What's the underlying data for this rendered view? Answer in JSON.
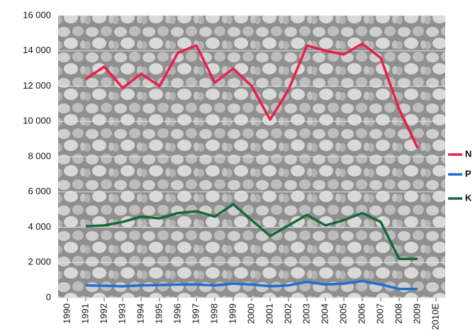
{
  "chart_data": {
    "type": "line",
    "categories": [
      "1990",
      "1991",
      "1992",
      "1993",
      "1994",
      "1995",
      "1996",
      "1997",
      "1998",
      "1999",
      "2000",
      "2001",
      "2002",
      "2003",
      "2004",
      "2005",
      "2006",
      "2007",
      "2008",
      "2009",
      "2010E"
    ],
    "series": [
      {
        "name": "N",
        "color": "#e8204a",
        "values": [
          null,
          12400,
          13100,
          11900,
          12700,
          12000,
          13900,
          14300,
          12200,
          13000,
          12000,
          10100,
          11800,
          14300,
          14000,
          13800,
          14400,
          13600,
          10700,
          8500,
          null
        ]
      },
      {
        "name": "P",
        "color": "#1f6fd1",
        "values": [
          null,
          700,
          680,
          650,
          700,
          720,
          750,
          750,
          700,
          800,
          750,
          650,
          700,
          900,
          750,
          800,
          950,
          750,
          500,
          500,
          null
        ]
      },
      {
        "name": "K",
        "color": "#17673a",
        "values": [
          null,
          4050,
          4100,
          4300,
          4600,
          4500,
          4800,
          4900,
          4600,
          5300,
          4400,
          3500,
          4100,
          4700,
          4100,
          4400,
          4800,
          4300,
          2200,
          2200,
          null
        ]
      }
    ],
    "ylim": [
      0,
      16000
    ],
    "yticks": [
      0,
      {
        "value": 2000,
        "label": "2 000"
      },
      {
        "value": 4000,
        "label": "4 000"
      },
      {
        "value": 6000,
        "label": "6 000"
      },
      {
        "value": 8000,
        "label": "8 000"
      },
      {
        "value": 10000,
        "label": "10 000"
      },
      {
        "value": 12000,
        "label": "12 000"
      },
      {
        "value": 14000,
        "label": "14 000"
      },
      {
        "value": 16000,
        "label": "16 000"
      }
    ],
    "grid": true,
    "legend": "right"
  }
}
